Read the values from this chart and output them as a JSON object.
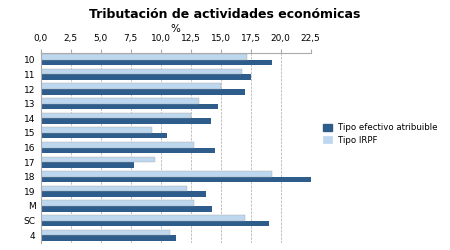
{
  "title": "Tributación de actividades económicas",
  "xlabel": "%",
  "categories": [
    "10",
    "11",
    "12",
    "13",
    "14",
    "15",
    "16",
    "17",
    "18",
    "19",
    "M",
    "SC",
    "4"
  ],
  "tipo_efectivo": [
    19.3,
    17.5,
    17.0,
    14.8,
    14.2,
    10.5,
    14.5,
    7.8,
    22.8,
    13.8,
    14.3,
    19.0,
    11.3
  ],
  "tipo_irpf": [
    17.2,
    16.8,
    15.0,
    13.2,
    12.5,
    9.3,
    12.8,
    9.5,
    19.3,
    12.2,
    12.8,
    17.0,
    10.8
  ],
  "color_efectivo": "#2E5D8C",
  "color_irpf": "#BDD7EE",
  "xlim": [
    0,
    22.5
  ],
  "xticks": [
    0.0,
    2.5,
    5.0,
    7.5,
    10.0,
    12.5,
    15.0,
    17.5,
    20.0,
    22.5
  ],
  "xtick_labels": [
    "0,0",
    "2,5",
    "5,0",
    "7,5",
    "10,0",
    "12,5",
    "15,0",
    "17,5",
    "20,0",
    "22,5"
  ],
  "legend_efectivo": "Tipo efectivo atribuible",
  "legend_irpf": "Tipo IRPF",
  "bar_height": 0.38,
  "grid_color": "#AAAAAA",
  "title_fontsize": 9,
  "axis_fontsize": 7.5,
  "tick_fontsize": 6.5
}
